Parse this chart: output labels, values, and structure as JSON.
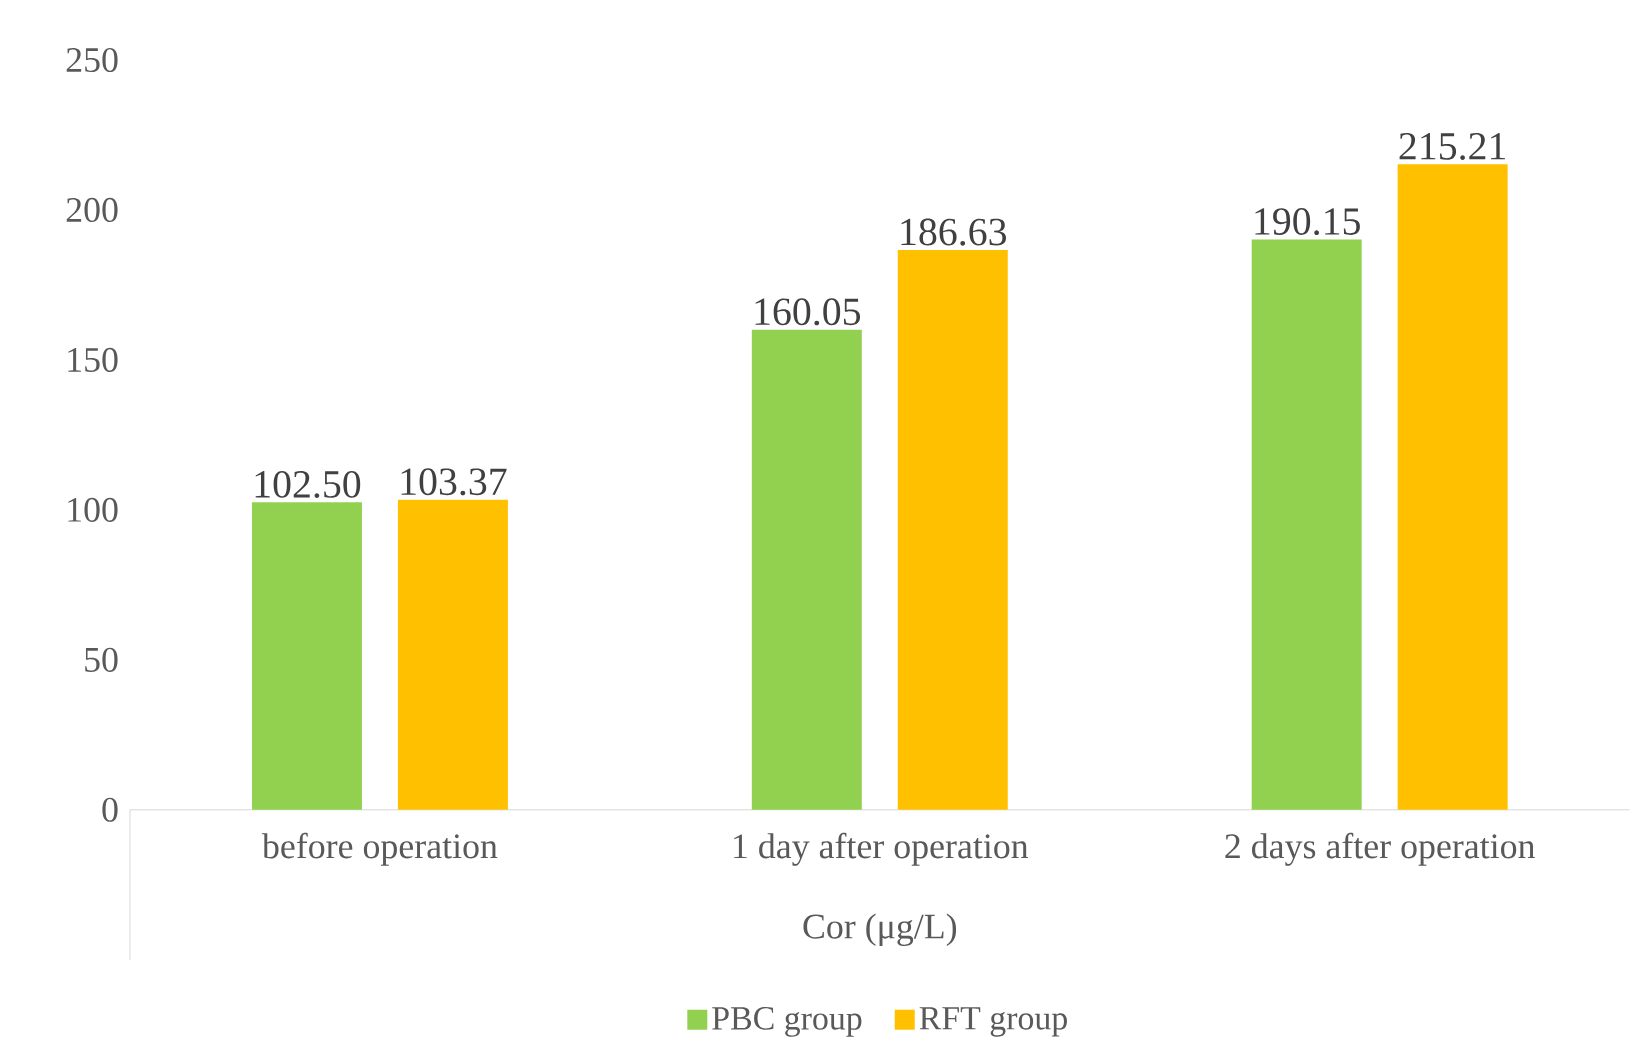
{
  "chart_data": {
    "type": "bar",
    "xlabel": "Cor (μg/L)",
    "categories": [
      "before operation",
      "1 day after operation",
      "2 days after operation"
    ],
    "series": [
      {
        "name": "PBC group",
        "color": "#92d050",
        "values": [
          102.5,
          160.05,
          190.15
        ],
        "value_labels": [
          "102.50",
          "160.05",
          "190.15"
        ]
      },
      {
        "name": "RFT group",
        "color": "#ffc000",
        "values": [
          103.37,
          186.63,
          215.21
        ],
        "value_labels": [
          "103.37",
          "186.63",
          "215.21"
        ]
      }
    ],
    "ylim": [
      0,
      250
    ],
    "yticks": [
      0,
      50,
      100,
      150,
      200,
      250
    ],
    "legend": "bottom"
  }
}
